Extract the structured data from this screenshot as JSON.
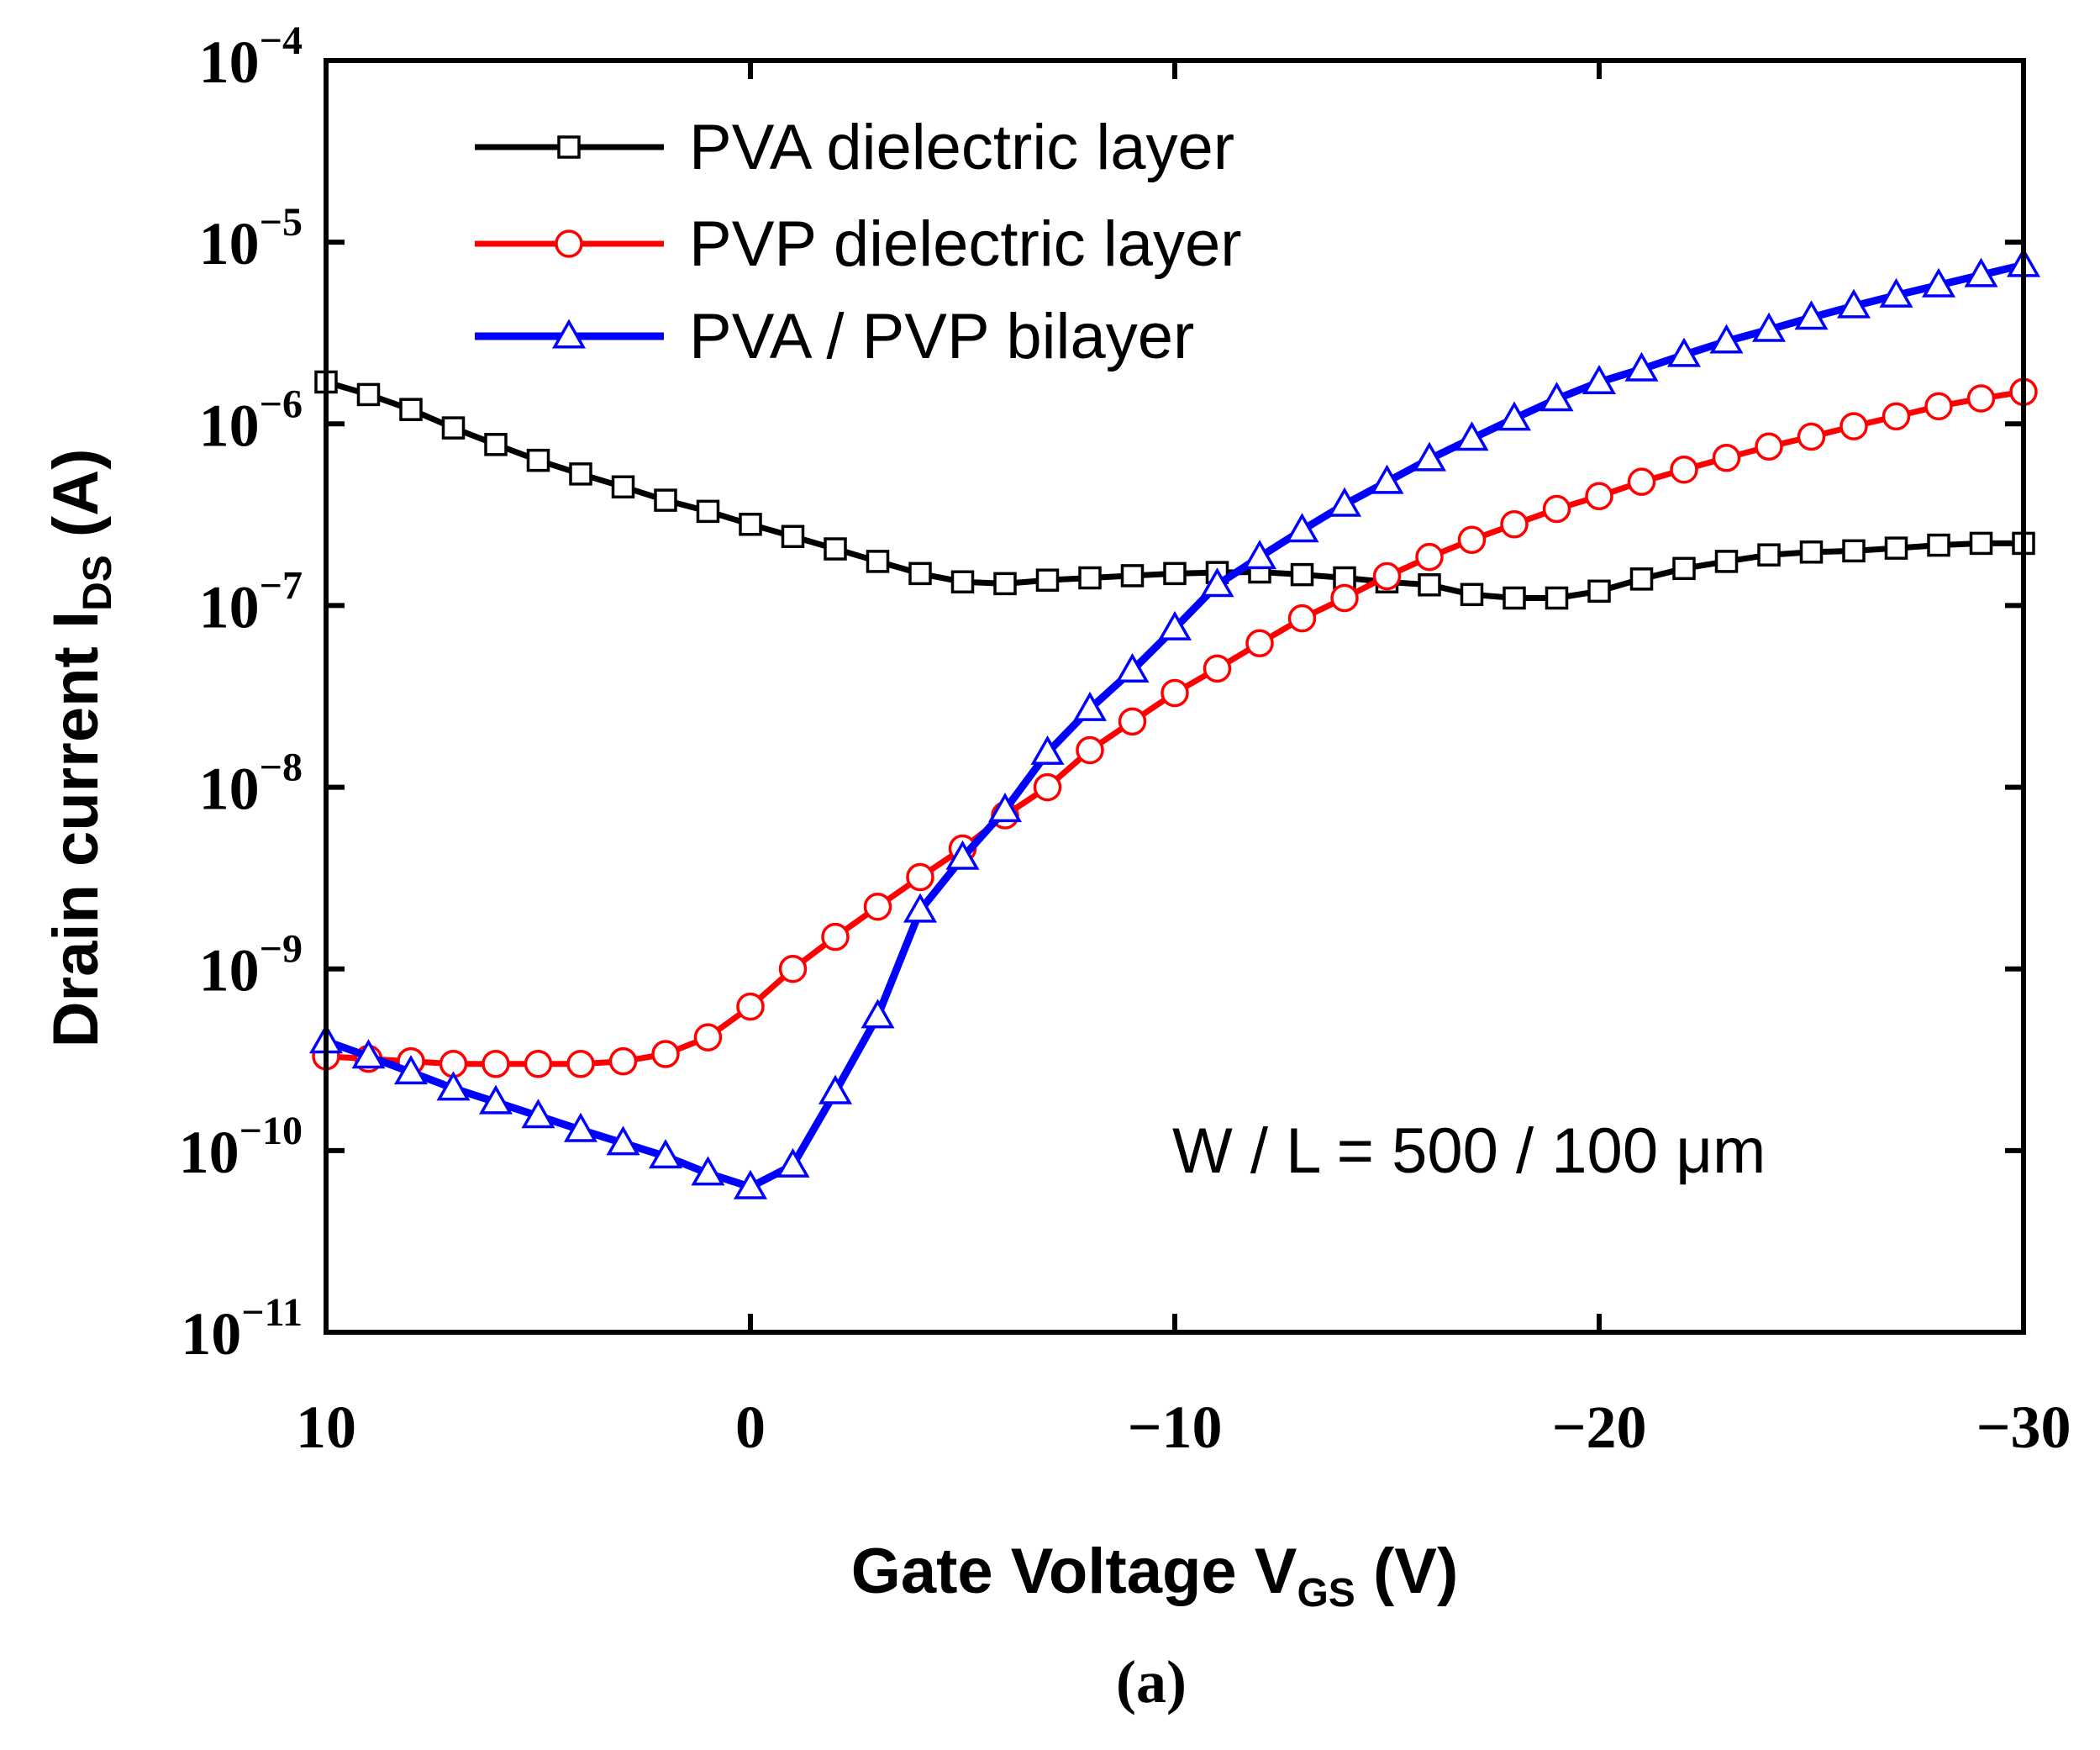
{
  "caption": "(a)",
  "chart_data": {
    "type": "line",
    "yscale": "log",
    "xlabel_main": "Gate Voltage V",
    "xlabel_sub": "GS",
    "xlabel_tail": " (V)",
    "ylabel_main": "Drain current I",
    "ylabel_sub": "DS",
    "ylabel_tail": " (A)",
    "xlim": [
      10,
      -30
    ],
    "ylim": [
      1e-11,
      0.0001
    ],
    "xticks": [
      10,
      0,
      -10,
      -20,
      -30
    ],
    "xtick_labels": [
      "10",
      "0",
      "−10",
      "−20",
      "−30"
    ],
    "yticks": [
      1e-11,
      1e-10,
      1e-09,
      1e-08,
      1e-07,
      1e-06,
      1e-05,
      0.0001
    ],
    "ytick_bases": [
      "10",
      "10",
      "10",
      "10",
      "10",
      "10",
      "10",
      "10"
    ],
    "ytick_exponents": [
      "−11",
      "−10",
      "−9",
      "−8",
      "−7",
      "−6",
      "−5",
      "−4"
    ],
    "annotation": "W / L = 500 / 100 μm",
    "x": [
      10,
      9,
      8,
      7,
      6,
      5,
      4,
      3,
      2,
      1,
      0,
      -1,
      -2,
      -3,
      -4,
      -5,
      -6,
      -7,
      -8,
      -9,
      -10,
      -11,
      -12,
      -13,
      -14,
      -15,
      -16,
      -17,
      -18,
      -19,
      -20,
      -21,
      -22,
      -23,
      -24,
      -25,
      -26,
      -27,
      -28,
      -29,
      -30
    ],
    "series": [
      {
        "name": "PVA dielectric layer",
        "color": "#000000",
        "marker": "square",
        "values": [
          1.7e-06,
          1.45e-06,
          1.2e-06,
          9.5e-07,
          7.7e-07,
          6.3e-07,
          5.3e-07,
          4.5e-07,
          3.8e-07,
          3.3e-07,
          2.8e-07,
          2.4e-07,
          2.05e-07,
          1.75e-07,
          1.5e-07,
          1.35e-07,
          1.32e-07,
          1.38e-07,
          1.42e-07,
          1.46e-07,
          1.5e-07,
          1.52e-07,
          1.53e-07,
          1.48e-07,
          1.42e-07,
          1.35e-07,
          1.3e-07,
          1.15e-07,
          1.1e-07,
          1.1e-07,
          1.2e-07,
          1.4e-07,
          1.6e-07,
          1.75e-07,
          1.9e-07,
          1.97e-07,
          2e-07,
          2.07e-07,
          2.15e-07,
          2.2e-07,
          2.2e-07
        ]
      },
      {
        "name": "PVP dielectric layer",
        "color": "#ff0000",
        "marker": "circle",
        "values": [
          3.3e-10,
          3.2e-10,
          3.1e-10,
          3e-10,
          3e-10,
          3e-10,
          3e-10,
          3.1e-10,
          3.4e-10,
          4.2e-10,
          6.2e-10,
          1e-09,
          1.5e-09,
          2.2e-09,
          3.2e-09,
          4.6e-09,
          7e-09,
          1e-08,
          1.6e-08,
          2.3e-08,
          3.3e-08,
          4.5e-08,
          6.2e-08,
          8.5e-08,
          1.1e-07,
          1.45e-07,
          1.85e-07,
          2.3e-07,
          2.8e-07,
          3.4e-07,
          4e-07,
          4.8e-07,
          5.6e-07,
          6.5e-07,
          7.5e-07,
          8.5e-07,
          9.7e-07,
          1.1e-06,
          1.25e-06,
          1.38e-06,
          1.5e-06
        ]
      },
      {
        "name": "PVA / PVP bilayer",
        "color": "#0000ff",
        "marker": "triangle",
        "values": [
          4e-10,
          3.3e-10,
          2.7e-10,
          2.2e-10,
          1.85e-10,
          1.55e-10,
          1.3e-10,
          1.1e-10,
          9.3e-11,
          7.5e-11,
          6.3e-11,
          8.3e-11,
          2.1e-10,
          5.5e-10,
          2.1e-09,
          4.1e-09,
          7.5e-09,
          1.55e-08,
          2.7e-08,
          4.4e-08,
          7.5e-08,
          1.3e-07,
          1.85e-07,
          2.6e-07,
          3.6e-07,
          4.8e-07,
          6.4e-07,
          8.3e-07,
          1.07e-06,
          1.37e-06,
          1.7e-06,
          2e-06,
          2.4e-06,
          2.85e-06,
          3.3e-06,
          3.85e-06,
          4.45e-06,
          5.1e-06,
          5.8e-06,
          6.6e-06,
          7.5e-06
        ]
      }
    ],
    "legend_position": "top-left"
  }
}
